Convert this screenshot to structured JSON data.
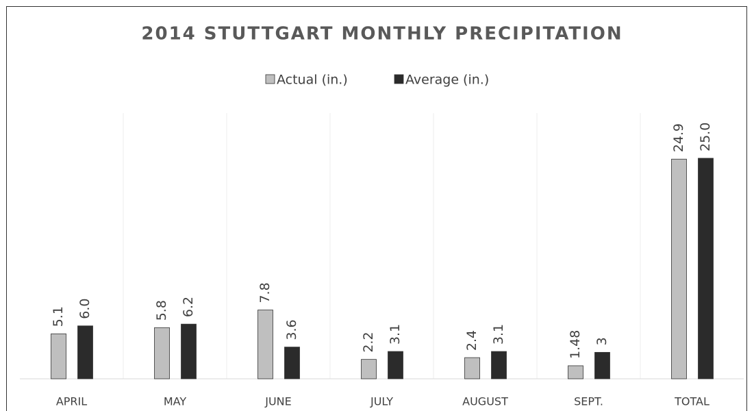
{
  "chart_data": {
    "type": "bar",
    "title": "2014 STUTTGART MONTHLY PRECIPITATION",
    "categories": [
      "APRIL",
      "MAY",
      "JUNE",
      "JULY",
      "AUGUST",
      "SEPT.",
      "TOTAL"
    ],
    "series": [
      {
        "name": "Actual (in.)",
        "color": "#bfbfbf",
        "values": [
          5.1,
          5.8,
          7.8,
          2.2,
          2.4,
          1.48,
          24.9
        ],
        "value_labels": [
          "5.1",
          "5.8",
          "7.8",
          "2.2",
          "2.4",
          "1.48",
          "24.9"
        ]
      },
      {
        "name": "Average (in.)",
        "color": "#2b2b2b",
        "values": [
          6.0,
          6.2,
          3.6,
          3.1,
          3.1,
          3,
          25.0
        ],
        "value_labels": [
          "6.0",
          "6.2",
          "3.6",
          "3.1",
          "3.1",
          "3",
          "25.0"
        ]
      }
    ],
    "legend": "top",
    "grid": "vertical"
  }
}
